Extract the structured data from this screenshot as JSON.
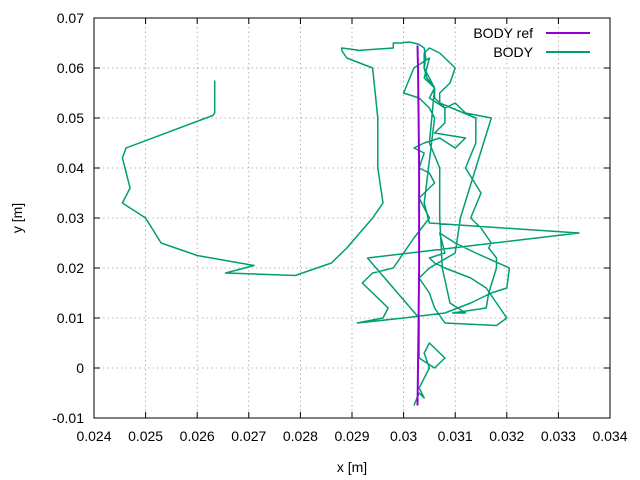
{
  "chart_data": {
    "type": "line",
    "xlabel": "x [m]",
    "ylabel": "y [m]",
    "xlim": [
      0.024,
      0.034
    ],
    "ylim": [
      -0.01,
      0.07
    ],
    "x_ticks": [
      0.024,
      0.025,
      0.026,
      0.027,
      0.028,
      0.029,
      0.03,
      0.031,
      0.032,
      0.033,
      0.034
    ],
    "x_tick_labels": [
      "0.024",
      "0.025",
      "0.026",
      "0.027",
      "0.028",
      "0.029",
      "0.03",
      "0.031",
      "0.032",
      "0.033",
      "0.034"
    ],
    "y_ticks": [
      -0.01,
      0,
      0.01,
      0.02,
      0.03,
      0.04,
      0.05,
      0.06,
      0.07
    ],
    "y_tick_labels": [
      "-0.01",
      "0",
      "0.01",
      "0.02",
      "0.03",
      "0.04",
      "0.05",
      "0.06",
      "0.07"
    ],
    "grid": true,
    "legend_position": "top-right",
    "series": [
      {
        "name": "BODY ref",
        "color": "#9400d3",
        "x": [
          0.03027,
          0.03028,
          0.03029,
          0.0303,
          0.0303,
          0.0303,
          0.03029,
          0.03028,
          0.03027
        ],
        "y": [
          -0.0075,
          0.0,
          0.01,
          0.02,
          0.03,
          0.04,
          0.05,
          0.06,
          0.0645
        ]
      },
      {
        "name": "BODY",
        "color": "#009e73",
        "x": [
          0.02634,
          0.02634,
          0.0263,
          0.02462,
          0.02455,
          0.0247,
          0.02455,
          0.025,
          0.0253,
          0.026,
          0.0271,
          0.02655,
          0.0279,
          0.0286,
          0.0289,
          0.0294,
          0.0296,
          0.0295,
          0.0295,
          0.0294,
          0.0289,
          0.0288,
          0.0288,
          0.0291,
          0.0291,
          0.0298,
          0.0298,
          0.02995,
          0.0301,
          0.0302,
          0.0303,
          0.0304,
          0.03043,
          0.0304,
          0.0306,
          0.0305,
          0.0307,
          0.0307,
          0.03075,
          0.0309,
          0.0312,
          0.03095,
          0.0316,
          0.03165,
          0.0318,
          0.0318,
          0.03165,
          0.0317,
          0.0315,
          0.0313,
          0.0315,
          0.0312,
          0.0314,
          0.0314,
          0.0307,
          0.0307,
          0.0309,
          0.031,
          0.0307,
          0.0305,
          0.0304,
          0.0304,
          0.03045,
          0.0306,
          0.0306,
          0.0308,
          0.0308,
          0.0306,
          0.0312,
          0.031,
          0.0307,
          0.0304,
          0.0302,
          0.0304,
          0.0303,
          0.0305,
          0.0306,
          0.0303,
          0.0305,
          0.0302,
          0.0298,
          0.0294,
          0.0292,
          0.0295,
          0.0297,
          0.0296,
          0.0291,
          0.03,
          0.0308,
          0.0313,
          0.0317,
          0.032,
          0.03205,
          0.0314,
          0.031,
          0.0307,
          0.0308,
          0.0305,
          0.0306,
          0.0308,
          0.0313,
          0.0316,
          0.032,
          0.0318,
          0.0308,
          0.0306,
          0.0305,
          0.0303,
          0.0305,
          0.031,
          0.0311,
          0.0314,
          0.0317,
          0.0312,
          0.031,
          0.0308,
          0.0305,
          0.0306,
          0.0304,
          0.0305,
          0.0302,
          0.03,
          0.0303,
          0.0305,
          0.0306,
          0.0304,
          0.0305,
          0.0334,
          0.0293,
          0.0303,
          0.0303,
          0.0303,
          0.0306,
          0.0308,
          0.0305,
          0.0304,
          0.0305,
          0.0303,
          0.0304,
          0.0303,
          0.0302
        ],
        "y": [
          0.0575,
          0.051,
          0.0505,
          0.044,
          0.042,
          0.036,
          0.033,
          0.03,
          0.025,
          0.0225,
          0.0205,
          0.019,
          0.0185,
          0.021,
          0.024,
          0.03,
          0.033,
          0.04,
          0.05,
          0.06,
          0.062,
          0.0635,
          0.064,
          0.0636,
          0.0635,
          0.064,
          0.065,
          0.065,
          0.0652,
          0.065,
          0.0647,
          0.064,
          0.062,
          0.06,
          0.056,
          0.045,
          0.04,
          0.03,
          0.02,
          0.013,
          0.011,
          0.011,
          0.012,
          0.015,
          0.02,
          0.022,
          0.024,
          0.025,
          0.028,
          0.03,
          0.035,
          0.04,
          0.045,
          0.05,
          0.053,
          0.055,
          0.057,
          0.06,
          0.063,
          0.064,
          0.063,
          0.06,
          0.058,
          0.056,
          0.054,
          0.052,
          0.049,
          0.047,
          0.046,
          0.044,
          0.046,
          0.045,
          0.044,
          0.043,
          0.04,
          0.039,
          0.037,
          0.034,
          0.03,
          0.026,
          0.02,
          0.019,
          0.017,
          0.014,
          0.012,
          0.01,
          0.009,
          0.01,
          0.011,
          0.013,
          0.015,
          0.016,
          0.02,
          0.023,
          0.025,
          0.027,
          0.023,
          0.022,
          0.021,
          0.02,
          0.018,
          0.016,
          0.01,
          0.0085,
          0.009,
          0.012,
          0.015,
          0.018,
          0.02,
          0.023,
          0.03,
          0.04,
          0.05,
          0.051,
          0.053,
          0.052,
          0.054,
          0.056,
          0.058,
          0.062,
          0.06,
          0.055,
          0.054,
          0.052,
          0.05,
          0.033,
          0.029,
          0.027,
          0.022,
          0.01,
          0.005,
          0.002,
          0.0,
          0.002,
          0.005,
          0.003,
          0.0,
          -0.004,
          -0.006,
          -0.005,
          -0.0075
        ]
      }
    ]
  }
}
